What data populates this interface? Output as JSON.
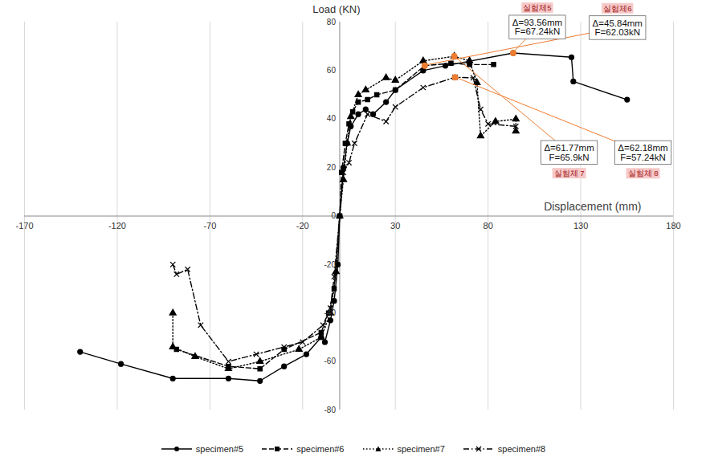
{
  "chart_data": {
    "type": "line",
    "x_label": "Displacement (mm)",
    "y_label": "Load (KN)",
    "xlim": [
      -170,
      180
    ],
    "xticks": [
      -170,
      -120,
      -70,
      -20,
      30,
      80,
      130,
      180
    ],
    "ylim": [
      -80,
      80
    ],
    "yticks": [
      -80,
      -60,
      -40,
      -20,
      0,
      20,
      40,
      60,
      80
    ],
    "grid": true,
    "legend": "bottom",
    "series": [
      {
        "name": "specimen#5",
        "color": "#000000",
        "marker": "circle",
        "line_style": "solid",
        "x": [
          -140,
          -118,
          -90,
          -60,
          -43,
          -30,
          -18,
          -10,
          -8,
          -5,
          -3,
          -1,
          0,
          2,
          4,
          6,
          10,
          14,
          18,
          25,
          30,
          45,
          57,
          93.56,
          125,
          126,
          155
        ],
        "values": [
          -56,
          -61,
          -67,
          -67,
          -68,
          -62,
          -57,
          -50,
          -52,
          -43,
          -35,
          -20,
          0,
          20,
          30,
          37,
          42,
          44,
          42,
          47,
          52,
          60,
          62,
          67.24,
          65.5,
          55.5,
          48
        ]
      },
      {
        "name": "specimen#6",
        "color": "#000000",
        "marker": "square",
        "line_style": "dashed",
        "x": [
          -88,
          -60,
          -43,
          -30,
          -10,
          -6,
          -3,
          0,
          1,
          3,
          5,
          7,
          10,
          15,
          20,
          30,
          45.84,
          60,
          70,
          83
        ],
        "values": [
          -55,
          -62,
          -63,
          -55,
          -48,
          -40,
          -30,
          0,
          18,
          30,
          38,
          43,
          47,
          48,
          50,
          52,
          62.03,
          63,
          62.5,
          62.5
        ]
      },
      {
        "name": "specimen#7",
        "color": "#000000",
        "marker": "triangle",
        "line_style": "dotted",
        "x": [
          -90,
          -90,
          -78,
          -60,
          -43,
          -22,
          -10,
          -5,
          -2,
          0,
          2,
          4,
          6,
          10,
          14,
          25,
          30,
          45,
          61.77,
          70,
          74,
          76,
          84,
          95,
          95
        ],
        "values": [
          -40,
          -54,
          -58,
          -63,
          -60,
          -55,
          -50,
          -40,
          -23,
          0,
          15,
          30,
          41,
          50,
          52,
          57,
          56,
          64,
          65.9,
          64,
          55,
          33,
          39,
          40,
          35
        ]
      },
      {
        "name": "specimen#8",
        "color": "#000000",
        "marker": "times",
        "line_style": "dashdot",
        "x": [
          -90,
          -88,
          -82,
          -75,
          -60,
          -45,
          -30,
          -20,
          -9,
          -5,
          -3,
          0,
          2,
          5,
          8,
          15,
          25,
          30,
          45,
          62.18,
          72,
          76,
          80,
          95
        ],
        "values": [
          -20,
          -24,
          -22,
          -45,
          -60,
          -57,
          -54,
          -52,
          -45,
          -38,
          -25,
          0,
          18,
          22,
          30,
          42,
          39,
          45,
          53,
          57.24,
          57,
          44,
          38,
          37
        ]
      }
    ],
    "annotations": [
      {
        "text": [
          "Δ=93.56mm",
          "F=67.24kN"
        ],
        "tag": "실험체5",
        "x": 93.56,
        "y": 67.24
      },
      {
        "text": [
          "Δ=45.84mm",
          "F=62.03kN"
        ],
        "tag": "실험체6",
        "x": 45.84,
        "y": 62.03
      },
      {
        "text": [
          "Δ=61.77mm",
          "F=65.9kN"
        ],
        "tag": "실험체 7",
        "x": 61.77,
        "y": 65.9
      },
      {
        "text": [
          "Δ=62.18mm",
          "F=57.24kN"
        ],
        "tag": "실험체 8",
        "x": 62.18,
        "y": 57.24
      }
    ]
  }
}
